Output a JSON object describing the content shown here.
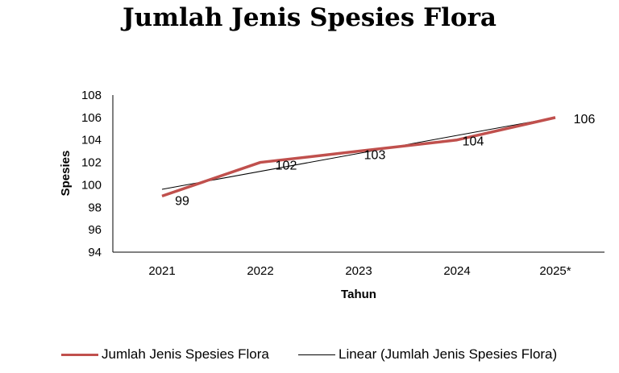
{
  "chart_data": {
    "type": "line",
    "title": "Jumlah Jenis Spesies Flora",
    "xlabel": "Tahun",
    "ylabel": "Spesies",
    "categories": [
      "2021",
      "2022",
      "2023",
      "2024",
      "2025*"
    ],
    "ylim": [
      94,
      108
    ],
    "yticks": [
      "94",
      "96",
      "98",
      "100",
      "102",
      "104",
      "106",
      "108"
    ],
    "series": [
      {
        "name": "Jumlah Jenis Spesies Flora",
        "values": [
          99,
          102,
          103,
          104,
          106
        ],
        "labels": [
          "99",
          "102",
          "103",
          "104",
          "106"
        ],
        "color": "#c0504d"
      }
    ],
    "trendline": {
      "name": "Linear (Jumlah Jenis Spesies Flora)",
      "type": "linear",
      "color": "#000000"
    },
    "grid": false,
    "legend_position": "bottom"
  }
}
